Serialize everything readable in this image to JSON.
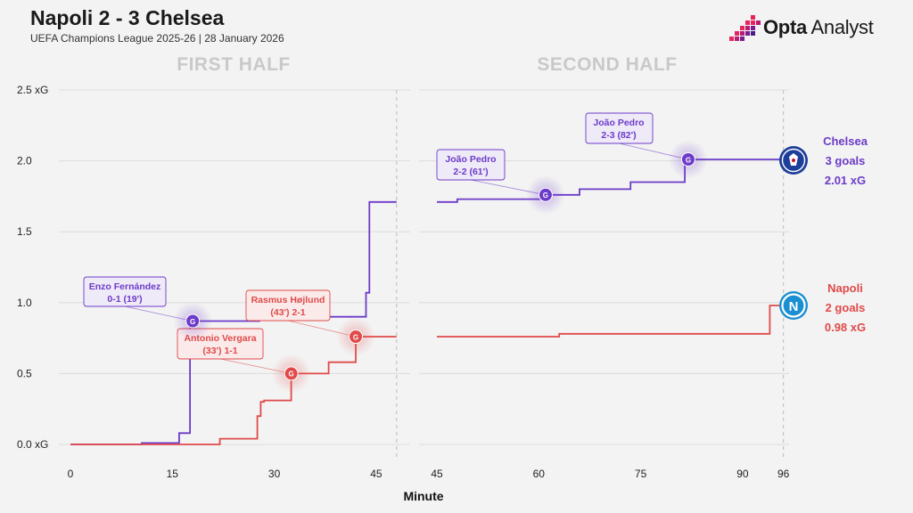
{
  "header": {
    "title": "Napoli 2 - 3 Chelsea",
    "subtitle": "UEFA Champions League 2025-26 | 28 January 2026",
    "brand_bold": "Opta",
    "brand_rest": " Analyst"
  },
  "colors": {
    "chelsea": "#6c3bc9",
    "napoli": "#e04a4a",
    "grid": "#dcdcdc",
    "background": "#f3f3f3",
    "half_label": "#c9c9c9"
  },
  "chart_data": {
    "type": "line",
    "step": true,
    "xlabel": "Minute",
    "ylabel": "",
    "ylim": [
      0,
      2.5
    ],
    "yticks": [
      {
        "value": 0,
        "label": "0.0 xG"
      },
      {
        "value": 0.5,
        "label": "0.5"
      },
      {
        "value": 1.0,
        "label": "1.0"
      },
      {
        "value": 1.5,
        "label": "1.5"
      },
      {
        "value": 2.0,
        "label": "2.0"
      },
      {
        "value": 2.5,
        "label": "2.5 xG"
      }
    ],
    "grid": true,
    "panels": [
      {
        "label": "FIRST HALF",
        "xlim": [
          0,
          49
        ],
        "xticks": [
          0,
          15,
          30,
          45
        ],
        "end_marker": 48
      },
      {
        "label": "SECOND HALF",
        "xlim": [
          45,
          96
        ],
        "xticks": [
          45,
          60,
          75,
          90,
          96
        ],
        "end_marker": 96
      }
    ],
    "series": [
      {
        "name": "Chelsea",
        "color_key": "chelsea",
        "half1": [
          [
            0,
            0
          ],
          [
            10.5,
            0
          ],
          [
            10.5,
            0.01
          ],
          [
            16,
            0.01
          ],
          [
            16,
            0.08
          ],
          [
            17.6,
            0.08
          ],
          [
            17.6,
            0.87
          ],
          [
            27.8,
            0.87
          ],
          [
            27.8,
            0.89
          ],
          [
            31.5,
            0.89
          ],
          [
            31.5,
            0.9
          ],
          [
            43.5,
            0.9
          ],
          [
            43.5,
            1.07
          ],
          [
            43.5,
            1.07
          ],
          [
            44,
            1.07
          ],
          [
            44,
            1.71
          ],
          [
            48,
            1.71
          ]
        ],
        "half2": [
          [
            45,
            1.71
          ],
          [
            48,
            1.71
          ],
          [
            48,
            1.73
          ],
          [
            61,
            1.73
          ],
          [
            61,
            1.76
          ],
          [
            66,
            1.76
          ],
          [
            66,
            1.8
          ],
          [
            73.5,
            1.8
          ],
          [
            73.5,
            1.85
          ],
          [
            81.5,
            1.85
          ],
          [
            81.5,
            2.01
          ],
          [
            96,
            2.01
          ]
        ],
        "goals": [
          {
            "minute": 18,
            "xg": 0.87,
            "half": 1,
            "text1": "Enzo Fernández",
            "text2": "0-1 (19')"
          },
          {
            "minute": 61,
            "xg": 1.76,
            "half": 2,
            "text1": "João Pedro",
            "text2": "2-2 (61')"
          },
          {
            "minute": 82,
            "xg": 2.01,
            "half": 2,
            "text1": "João Pedro",
            "text2": "2-3 (82')"
          }
        ],
        "summary": {
          "team": "Chelsea",
          "goals": "3 goals",
          "xg": "2.01 xG"
        }
      },
      {
        "name": "Napoli",
        "color_key": "napoli",
        "half1": [
          [
            0,
            0
          ],
          [
            22,
            0
          ],
          [
            22,
            0.04
          ],
          [
            27.5,
            0.04
          ],
          [
            27.5,
            0.2
          ],
          [
            28,
            0.2
          ],
          [
            28,
            0.3
          ],
          [
            28.5,
            0.3
          ],
          [
            28.5,
            0.31
          ],
          [
            32.5,
            0.31
          ],
          [
            32.5,
            0.5
          ],
          [
            38,
            0.5
          ],
          [
            38,
            0.58
          ],
          [
            42,
            0.58
          ],
          [
            42,
            0.76
          ],
          [
            48,
            0.76
          ]
        ],
        "half2": [
          [
            45,
            0.76
          ],
          [
            63,
            0.76
          ],
          [
            63,
            0.78
          ],
          [
            94,
            0.78
          ],
          [
            94,
            0.98
          ],
          [
            96,
            0.98
          ]
        ],
        "goals": [
          {
            "minute": 32.5,
            "xg": 0.5,
            "half": 1,
            "text1": "Antonio Vergara",
            "text2": "(33') 1-1"
          },
          {
            "minute": 42,
            "xg": 0.76,
            "half": 1,
            "text1": "Rasmus Højlund",
            "text2": "(43') 2-1"
          }
        ],
        "summary": {
          "team": "Napoli",
          "goals": "2 goals",
          "xg": "0.98 xG"
        }
      }
    ],
    "goal_marker": "G"
  }
}
